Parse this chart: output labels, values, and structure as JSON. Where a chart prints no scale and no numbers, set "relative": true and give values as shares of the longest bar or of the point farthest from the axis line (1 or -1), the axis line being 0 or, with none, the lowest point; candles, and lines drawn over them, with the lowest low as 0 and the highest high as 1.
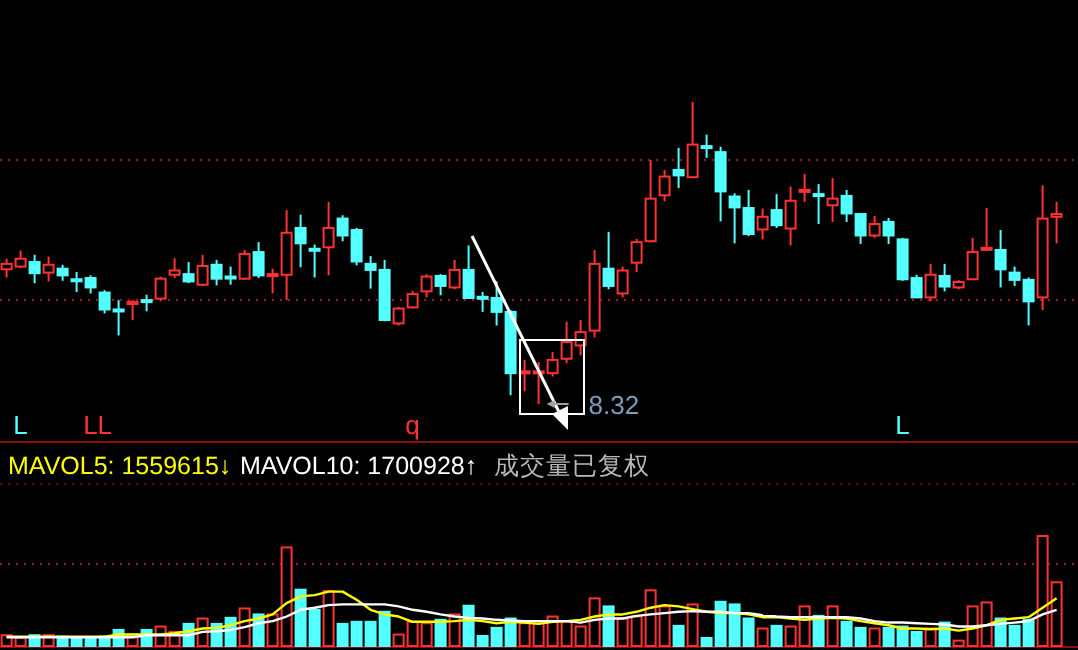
{
  "chart_data": [
    {
      "type": "candlestick",
      "relative": true,
      "ref_lines": [
        {
          "axis": "y",
          "value": 0.808,
          "color": "#a01818",
          "line_style": "dotted"
        },
        {
          "axis": "y",
          "value": 0.344,
          "color": "#a01818",
          "line_style": "dotted"
        }
      ],
      "categories": [
        null,
        null,
        null,
        null,
        null,
        null,
        null,
        null,
        null,
        null,
        null,
        null,
        null,
        null,
        null,
        null,
        null,
        null,
        null,
        null,
        null,
        null,
        null,
        null,
        null,
        null,
        null,
        null,
        null,
        null,
        null,
        null,
        null,
        null,
        null,
        null,
        null,
        null,
        null,
        null,
        null,
        null,
        null,
        null,
        null,
        null,
        null,
        null,
        null,
        null,
        null,
        null,
        null,
        null,
        null,
        null,
        null,
        null,
        null,
        null,
        null,
        null,
        null,
        null,
        null,
        null,
        null,
        null,
        null,
        null,
        null,
        null,
        null,
        null,
        null,
        null
      ],
      "ohlc": [
        [
          0.446,
          0.481,
          0.419,
          0.464
        ],
        [
          0.455,
          0.508,
          0.45,
          0.481
        ],
        [
          0.47,
          0.494,
          0.4,
          0.433
        ],
        [
          0.435,
          0.488,
          0.406,
          0.461
        ],
        [
          0.448,
          0.461,
          0.408,
          0.426
        ],
        [
          0.413,
          0.437,
          0.371,
          0.408
        ],
        [
          0.417,
          0.426,
          0.366,
          0.386
        ],
        [
          0.369,
          0.377,
          0.3,
          0.313
        ],
        [
          0.313,
          0.344,
          0.227,
          0.309
        ],
        [
          0.331,
          0.344,
          0.278,
          0.338
        ],
        [
          0.344,
          0.362,
          0.307,
          0.34
        ],
        [
          0.349,
          0.422,
          0.34,
          0.415
        ],
        [
          0.428,
          0.483,
          0.417,
          0.442
        ],
        [
          0.43,
          0.47,
          0.4,
          0.406
        ],
        [
          0.395,
          0.494,
          0.391,
          0.457
        ],
        [
          0.461,
          0.477,
          0.393,
          0.415
        ],
        [
          0.422,
          0.455,
          0.395,
          0.417
        ],
        [
          0.415,
          0.51,
          0.411,
          0.497
        ],
        [
          0.503,
          0.536,
          0.417,
          0.426
        ],
        [
          0.426,
          0.448,
          0.366,
          0.43
        ],
        [
          0.428,
          0.642,
          0.344,
          0.567
        ],
        [
          0.583,
          0.627,
          0.453,
          0.532
        ],
        [
          0.514,
          0.528,
          0.419,
          0.51
        ],
        [
          0.519,
          0.669,
          0.426,
          0.583
        ],
        [
          0.614,
          0.625,
          0.539,
          0.558
        ],
        [
          0.576,
          0.583,
          0.459,
          0.472
        ],
        [
          0.464,
          0.49,
          0.382,
          0.444
        ],
        [
          0.444,
          0.477,
          0.274,
          0.278
        ],
        [
          0.267,
          0.322,
          0.26,
          0.316
        ],
        [
          0.32,
          0.375,
          0.316,
          0.364
        ],
        [
          0.373,
          0.43,
          0.353,
          0.422
        ],
        [
          0.424,
          0.43,
          0.36,
          0.391
        ],
        [
          0.386,
          0.477,
          0.38,
          0.444
        ],
        [
          0.444,
          0.525,
          0.351,
          0.351
        ],
        [
          0.355,
          0.371,
          0.305,
          0.351
        ],
        [
          0.351,
          0.406,
          0.26,
          0.305
        ],
        [
          0.305,
          0.311,
          0.029,
          0.102
        ],
        [
          0.102,
          0.146,
          0.042,
          0.108
        ],
        [
          0.102,
          0.139,
          0,
          0.108
        ],
        [
          0.102,
          0.172,
          0.091,
          0.146
        ],
        [
          0.15,
          0.272,
          0.135,
          0.205
        ],
        [
          0.194,
          0.278,
          0.161,
          0.238
        ],
        [
          0.243,
          0.51,
          0.221,
          0.464
        ],
        [
          0.448,
          0.57,
          0.38,
          0.391
        ],
        [
          0.366,
          0.455,
          0.353,
          0.442
        ],
        [
          0.468,
          0.547,
          0.437,
          0.536
        ],
        [
          0.539,
          0.808,
          0.536,
          0.68
        ],
        [
          0.691,
          0.775,
          0.671,
          0.753
        ],
        [
          0.775,
          0.848,
          0.715,
          0.757
        ],
        [
          0.751,
          1,
          0.751,
          0.859
        ],
        [
          0.854,
          0.892,
          0.815,
          0.85
        ],
        [
          0.834,
          0.852,
          0.605,
          0.704
        ],
        [
          0.687,
          0.698,
          0.532,
          0.651
        ],
        [
          0.649,
          0.709,
          0.556,
          0.563
        ],
        [
          0.578,
          0.647,
          0.545,
          0.62
        ],
        [
          0.642,
          0.695,
          0.583,
          0.592
        ],
        [
          0.581,
          0.72,
          0.525,
          0.673
        ],
        [
          0.704,
          0.762,
          0.669,
          0.709
        ],
        [
          0.695,
          0.728,
          0.596,
          0.691
        ],
        [
          0.658,
          0.748,
          0.603,
          0.68
        ],
        [
          0.689,
          0.709,
          0.603,
          0.631
        ],
        [
          0.629,
          0.629,
          0.53,
          0.558
        ],
        [
          0.558,
          0.623,
          0.55,
          0.596
        ],
        [
          0.603,
          0.616,
          0.53,
          0.558
        ],
        [
          0.545,
          0.55,
          0.408,
          0.413
        ],
        [
          0.417,
          0.428,
          0.351,
          0.353
        ],
        [
          0.353,
          0.464,
          0.34,
          0.428
        ],
        [
          0.424,
          0.464,
          0.373,
          0.389
        ],
        [
          0.386,
          0.411,
          0.38,
          0.404
        ],
        [
          0.413,
          0.55,
          0.413,
          0.503
        ],
        [
          0.512,
          0.649,
          0.512,
          0.517
        ],
        [
          0.51,
          0.576,
          0.386,
          0.446
        ],
        [
          0.435,
          0.455,
          0.391,
          0.411
        ],
        [
          0.411,
          0.419,
          0.26,
          0.34
        ],
        [
          0.353,
          0.724,
          0.311,
          0.614
        ],
        [
          0.62,
          0.669,
          0.532,
          0.629
        ]
      ],
      "annotations": [
        "L",
        "LL",
        "q",
        "L",
        "8.32"
      ]
    },
    {
      "type": "bar",
      "relative": true,
      "legend": "top left",
      "title": "成交量已复权",
      "ref_lines": [
        {
          "axis": "y",
          "value": 0.745,
          "color": "#a01818",
          "line_style": "dotted"
        }
      ],
      "categories": [
        null,
        null,
        null,
        null,
        null,
        null,
        null,
        null,
        null,
        null,
        null,
        null,
        null,
        null,
        null,
        null,
        null,
        null,
        null,
        null,
        null,
        null,
        null,
        null,
        null,
        null,
        null,
        null,
        null,
        null,
        null,
        null,
        null,
        null,
        null,
        null,
        null,
        null,
        null,
        null,
        null,
        null,
        null,
        null,
        null,
        null,
        null,
        null,
        null,
        null,
        null,
        null,
        null,
        null,
        null,
        null,
        null,
        null,
        null,
        null,
        null,
        null,
        null,
        null,
        null,
        null,
        null,
        null,
        null,
        null,
        null,
        null,
        null,
        null,
        null,
        null
      ],
      "series": [
        {
          "type": "bar",
          "colors": [
            "#ff3232",
            "#ff3232",
            "#54ffff",
            "#ff3232",
            "#54ffff",
            "#54ffff",
            "#54ffff",
            "#54ffff",
            "#54ffff",
            "#ff3232",
            "#54ffff",
            "#ff3232",
            "#ff3232",
            "#54ffff",
            "#ff3232",
            "#54ffff",
            "#54ffff",
            "#ff3232",
            "#54ffff",
            "#ff3232",
            "#ff3232",
            "#54ffff",
            "#54ffff",
            "#ff3232",
            "#54ffff",
            "#54ffff",
            "#54ffff",
            "#54ffff",
            "#ff3232",
            "#ff3232",
            "#ff3232",
            "#54ffff",
            "#ff3232",
            "#54ffff",
            "#54ffff",
            "#54ffff",
            "#54ffff",
            "#ff3232",
            "#ff3232",
            "#ff3232",
            "#ff3232",
            "#ff3232",
            "#ff3232",
            "#54ffff",
            "#ff3232",
            "#ff3232",
            "#ff3232",
            "#ff3232",
            "#54ffff",
            "#ff3232",
            "#54ffff",
            "#54ffff",
            "#54ffff",
            "#54ffff",
            "#ff3232",
            "#54ffff",
            "#ff3232",
            "#ff3232",
            "#54ffff",
            "#ff3232",
            "#54ffff",
            "#54ffff",
            "#ff3232",
            "#54ffff",
            "#54ffff",
            "#54ffff",
            "#ff3232",
            "#54ffff",
            "#ff3232",
            "#ff3232",
            "#ff3232",
            "#54ffff",
            "#54ffff",
            "#54ffff",
            "#ff3232",
            "#ff3232"
          ],
          "values": [
            0.098,
            0.073,
            0.098,
            0.098,
            0.085,
            0.073,
            0.073,
            0.085,
            0.146,
            0.104,
            0.146,
            0.177,
            0.128,
            0.201,
            0.25,
            0.201,
            0.256,
            0.341,
            0.287,
            0.287,
            0.896,
            0.512,
            0.329,
            0.5,
            0.201,
            0.22,
            0.22,
            0.311,
            0.104,
            0.22,
            0.207,
            0.238,
            0.287,
            0.366,
            0.091,
            0.165,
            0.25,
            0.207,
            0.207,
            0.268,
            0.22,
            0.177,
            0.433,
            0.36,
            0.25,
            0.268,
            0.506,
            0.36,
            0.183,
            0.378,
            0.073,
            0.402,
            0.378,
            0.25,
            0.159,
            0.183,
            0.177,
            0.36,
            0.274,
            0.36,
            0.22,
            0.165,
            0.159,
            0.165,
            0.177,
            0.128,
            0.159,
            0.213,
            0.049,
            0.36,
            0.396,
            0.25,
            0.183,
            0.238,
            1,
            0.579
          ]
        },
        {
          "type": "line",
          "name": "MAVOL5: 1559615↓",
          "color": "#ffff00",
          "values": [
            0.085,
            0.085,
            0.085,
            0.085,
            0.085,
            0.085,
            0.085,
            0.085,
            0.104,
            0.104,
            0.104,
            0.104,
            0.116,
            0.134,
            0.159,
            0.165,
            0.189,
            0.226,
            0.25,
            0.287,
            0.39,
            0.451,
            0.463,
            0.494,
            0.494,
            0.421,
            0.329,
            0.287,
            0.268,
            0.22,
            0.22,
            0.22,
            0.226,
            0.238,
            0.226,
            0.207,
            0.22,
            0.213,
            0.201,
            0.22,
            0.226,
            0.238,
            0.268,
            0.287,
            0.287,
            0.311,
            0.348,
            0.372,
            0.36,
            0.335,
            0.311,
            0.299,
            0.299,
            0.287,
            0.262,
            0.262,
            0.25,
            0.238,
            0.25,
            0.256,
            0.25,
            0.226,
            0.207,
            0.189,
            0.159,
            0.159,
            0.152,
            0.159,
            0.14,
            0.159,
            0.189,
            0.238,
            0.25,
            0.262,
            0.348,
            0.433
          ]
        },
        {
          "type": "line",
          "name": "MAVOL10: 1700928↑",
          "color": "#ffffff",
          "values": [
            0.079,
            0.079,
            0.079,
            0.079,
            0.079,
            0.079,
            0.079,
            0.079,
            0.079,
            0.079,
            0.098,
            0.098,
            0.098,
            0.098,
            0.128,
            0.134,
            0.146,
            0.171,
            0.207,
            0.226,
            0.268,
            0.329,
            0.348,
            0.372,
            0.378,
            0.378,
            0.378,
            0.378,
            0.36,
            0.329,
            0.311,
            0.287,
            0.268,
            0.256,
            0.25,
            0.238,
            0.232,
            0.226,
            0.226,
            0.226,
            0.226,
            0.213,
            0.238,
            0.25,
            0.25,
            0.274,
            0.287,
            0.299,
            0.311,
            0.317,
            0.311,
            0.311,
            0.299,
            0.299,
            0.28,
            0.268,
            0.262,
            0.262,
            0.262,
            0.262,
            0.262,
            0.25,
            0.226,
            0.213,
            0.213,
            0.207,
            0.201,
            0.195,
            0.177,
            0.177,
            0.189,
            0.201,
            0.213,
            0.226,
            0.287,
            0.329
          ]
        }
      ]
    }
  ]
}
